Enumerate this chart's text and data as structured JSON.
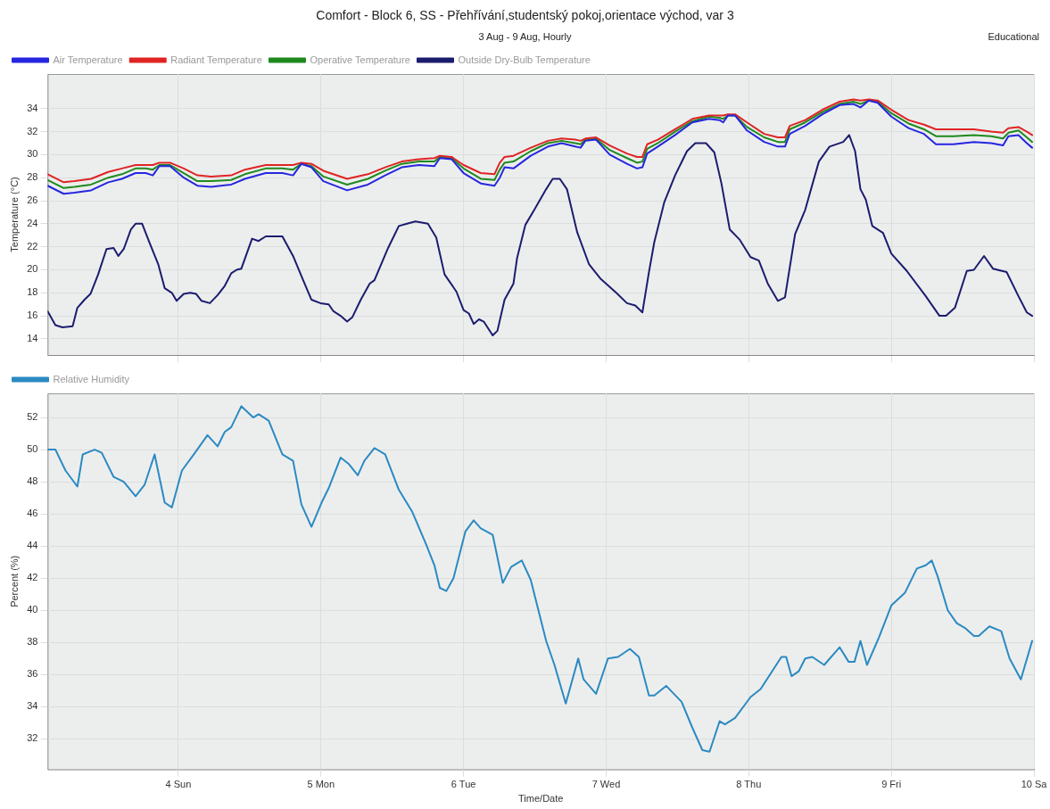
{
  "chart_data": [
    {
      "type": "line",
      "title": "Comfort - Block 6, SS - Přehřívání,studentský pokoj,orientace východ, var 3",
      "subtitle": "3 Aug - 9 Aug, Hourly",
      "annotations": [
        "Educational"
      ],
      "ylabel": "Temperature (°C)",
      "legend": "top left",
      "grid": true,
      "marker": "none",
      "line_style": "solid",
      "tick_labels": "y",
      "xlim": [
        "--08-03T02:00",
        "--08-10"
      ],
      "xticks": [
        {
          "value": "--08-04",
          "label": null
        },
        {
          "value": "--08-05",
          "label": null
        },
        {
          "value": "--08-06",
          "label": null
        },
        {
          "value": "--08-07",
          "label": null
        },
        {
          "value": "--08-08",
          "label": null
        },
        {
          "value": "--08-09",
          "label": null
        },
        {
          "value": "--08-10",
          "label": null
        }
      ],
      "ylim": [
        12.6,
        37
      ],
      "yticks": [
        14,
        16,
        18,
        20,
        22,
        24,
        26,
        28,
        30,
        32,
        34
      ],
      "x": [
        "--08-03T02:00",
        "--08-03T04:42",
        "--08-03T06:30",
        "--08-03T09:18",
        "--08-03T12:12",
        "--08-03T14:30",
        "--08-03T16:48",
        "--08-03T18:30",
        "--08-03T19:42",
        "--08-03T20:48",
        "--08-03T22:36",
        "--08-04T00:54",
        "--08-04T03:12",
        "--08-04T05:30",
        "--08-04T08:54",
        "--08-04T11:12",
        "--08-04T14:42",
        "--08-04T17:30",
        "--08-04T19:18",
        "--08-04T20:42",
        "--08-04T22:24",
        "--08-05T00:24",
        "--08-05T04:24",
        "--08-05T07:54",
        "--08-05T10:48",
        "--08-05T13:36",
        "--08-05T16:30",
        "--08-05T19:06",
        "--08-05T20:00",
        "--08-05T22:00",
        "--08-06T00:00",
        "--08-06T02:54",
        "--08-06T05:12",
        "--08-06T06:06",
        "--08-06T06:54",
        "--08-06T08:24",
        "--08-06T11:18",
        "--08-06T14:12",
        "--08-06T16:30",
        "--08-06T18:48",
        "--08-06T19:42",
        "--08-06T20:30",
        "--08-06T22:18",
        "--08-07T00:36",
        "--08-07T03:30",
        "--08-07T05:12",
        "--08-07T06:06",
        "--08-07T06:54",
        "--08-07T08:42",
        "--08-07T11:36",
        "--08-07T14:30",
        "--08-07T17:18",
        "--08-07T19:06",
        "--08-07T19:42",
        "--08-07T20:30",
        "--08-07T21:42",
        "--08-07T23:42",
        "--08-08T02:36",
        "--08-08T04:54",
        "--08-08T06:06",
        "--08-08T06:54",
        "--08-08T09:30",
        "--08-08T12:24",
        "--08-08T15:18",
        "--08-08T17:36",
        "--08-08T18:48",
        "--08-08T20:12",
        "--08-08T21:42",
        "--08-09T00:00",
        "--08-09T02:54",
        "--08-09T05:30",
        "--08-09T07:30",
        "--08-09T10:24",
        "--08-09T13:54",
        "--08-09T16:48",
        "--08-09T18:48",
        "--08-09T19:42",
        "--08-09T21:24",
        "--08-09T22:48",
        "--08-09T23:42"
      ],
      "series": [
        {
          "name": "Air Temperature",
          "color": "#2626e0",
          "values": [
            27.3,
            26.6,
            26.7,
            26.9,
            27.6,
            27.9,
            28.4,
            28.4,
            28.2,
            29.0,
            29.0,
            28.0,
            27.3,
            27.2,
            27.4,
            27.9,
            28.4,
            28.4,
            28.2,
            29.2,
            28.9,
            27.7,
            26.9,
            27.4,
            28.2,
            28.9,
            29.1,
            29.0,
            29.7,
            29.6,
            28.4,
            27.5,
            27.3,
            28.0,
            28.9,
            28.8,
            29.9,
            30.7,
            31.0,
            30.7,
            30.6,
            31.2,
            31.3,
            30.0,
            29.2,
            28.8,
            28.9,
            30.1,
            30.7,
            31.7,
            32.8,
            33.1,
            33.0,
            32.8,
            33.4,
            33.4,
            32.1,
            31.1,
            30.7,
            30.7,
            31.8,
            32.5,
            33.5,
            34.3,
            34.4,
            34.1,
            34.7,
            34.5,
            33.3,
            32.3,
            31.8,
            30.9,
            30.9,
            31.1,
            31.0,
            30.8,
            31.6,
            31.7,
            31.0,
            30.6
          ]
        },
        {
          "name": "Radiant Temperature",
          "color": "#e02424",
          "values": [
            28.3,
            27.6,
            27.7,
            27.9,
            28.5,
            28.8,
            29.1,
            29.1,
            29.1,
            29.3,
            29.3,
            28.8,
            28.2,
            28.1,
            28.2,
            28.7,
            29.1,
            29.1,
            29.1,
            29.3,
            29.2,
            28.6,
            27.9,
            28.3,
            28.9,
            29.4,
            29.6,
            29.7,
            29.9,
            29.8,
            29.1,
            28.4,
            28.3,
            29.3,
            29.8,
            29.9,
            30.6,
            31.2,
            31.4,
            31.3,
            31.2,
            31.4,
            31.5,
            30.8,
            30.1,
            29.8,
            29.8,
            30.9,
            31.3,
            32.2,
            33.1,
            33.4,
            33.4,
            33.4,
            33.5,
            33.5,
            32.8,
            31.8,
            31.5,
            31.5,
            32.5,
            33.0,
            33.9,
            34.6,
            34.8,
            34.7,
            34.8,
            34.7,
            33.9,
            33.0,
            32.6,
            32.2,
            32.2,
            32.2,
            32.0,
            31.9,
            32.3,
            32.4,
            32.0,
            31.7
          ]
        },
        {
          "name": "Operative Temperature",
          "color": "#1e8a1e",
          "values": [
            27.8,
            27.1,
            27.2,
            27.4,
            28.0,
            28.3,
            28.8,
            28.8,
            28.7,
            29.1,
            29.1,
            28.4,
            27.7,
            27.7,
            27.8,
            28.3,
            28.8,
            28.8,
            28.7,
            29.2,
            29.0,
            28.1,
            27.4,
            27.9,
            28.6,
            29.2,
            29.4,
            29.4,
            29.8,
            29.7,
            28.8,
            27.9,
            27.8,
            28.7,
            29.3,
            29.4,
            30.3,
            31.0,
            31.2,
            31.0,
            30.9,
            31.3,
            31.4,
            30.4,
            29.7,
            29.3,
            29.4,
            30.5,
            31.0,
            32.0,
            32.9,
            33.3,
            33.2,
            33.1,
            33.4,
            33.4,
            32.4,
            31.5,
            31.1,
            31.1,
            32.2,
            32.8,
            33.7,
            34.4,
            34.6,
            34.4,
            34.7,
            34.6,
            33.6,
            32.7,
            32.2,
            31.6,
            31.6,
            31.7,
            31.6,
            31.4,
            31.9,
            32.1,
            31.5,
            31.1
          ]
        },
        {
          "name": "Outside Dry-Bulb Temperature",
          "color": "#1c1c6e",
          "x": [
            "--08-03T02:00",
            "--08-03T03:18",
            "--08-03T04:30",
            "--08-03T06:12",
            "--08-03T07:00",
            "--08-03T08:12",
            "--08-03T09:12",
            "--08-03T10:30",
            "--08-03T11:54",
            "--08-03T13:06",
            "--08-03T13:54",
            "--08-03T14:48",
            "--08-03T16:00",
            "--08-03T16:48",
            "--08-03T17:54",
            "--08-03T19:06",
            "--08-03T20:36",
            "--08-03T21:42",
            "--08-03T22:54",
            "--08-03T23:42",
            "--08-04T00:54",
            "--08-04T02:00",
            "--08-04T03:00",
            "--08-04T03:54",
            "--08-04T05:18",
            "--08-04T06:36",
            "--08-04T07:48",
            "--08-04T08:54",
            "--08-04T09:48",
            "--08-04T10:36",
            "--08-04T12:24",
            "--08-04T13:30",
            "--08-04T14:42",
            "--08-04T15:48",
            "--08-04T17:30",
            "--08-04T19:18",
            "--08-04T21:00",
            "--08-04T22:24",
            "--08-04T23:54",
            "--08-05T01:18",
            "--08-05T02:06",
            "--08-05T03:18",
            "--08-05T04:24",
            "--08-05T05:18",
            "--08-05T06:42",
            "--08-05T08:12",
            "--08-05T09:00",
            "--08-05T11:18",
            "--08-05T13:06",
            "--08-05T14:30",
            "--08-05T15:54",
            "--08-05T18:00",
            "--08-05T19:24",
            "--08-05T20:48",
            "--08-05T22:48",
            "--08-06T00:00",
            "--08-06T00:54",
            "--08-06T01:42",
            "--08-06T02:36",
            "--08-06T03:24",
            "--08-06T04:54",
            "--08-06T05:42",
            "--08-06T06:54",
            "--08-06T08:24",
            "--08-06T09:00",
            "--08-06T10:24",
            "--08-06T11:54",
            "--08-06T13:54",
            "--08-06T15:00",
            "--08-06T16:12",
            "--08-06T17:24",
            "--08-06T19:06",
            "--08-06T21:06",
            "--08-06T23:06",
            "--08-07T01:42",
            "--08-07T03:30",
            "--08-07T04:54",
            "--08-07T06:06",
            "--08-07T07:12",
            "--08-07T08:06",
            "--08-07T09:48",
            "--08-07T11:36",
            "--08-07T13:36",
            "--08-07T15:00",
            "--08-07T16:48",
            "--08-07T18:12",
            "--08-07T19:24",
            "--08-07T20:48",
            "--08-07T22:30",
            "--08-08T00:18",
            "--08-08T01:42",
            "--08-08T03:12",
            "--08-08T04:54",
            "--08-08T06:06",
            "--08-08T07:48",
            "--08-08T09:30",
            "--08-08T11:48",
            "--08-08T13:36",
            "--08-08T15:54",
            "--08-08T16:54",
            "--08-08T17:54",
            "--08-08T18:48",
            "--08-08T19:42",
            "--08-08T20:48",
            "--08-08T22:36",
            "--08-09T00:00",
            "--08-09T02:36",
            "--08-09T05:48",
            "--08-09T08:06",
            "--08-09T09:12",
            "--08-09T10:42",
            "--08-09T12:42",
            "--08-09T13:54",
            "--08-09T15:36",
            "--08-09T17:06",
            "--08-09T19:24",
            "--08-09T21:24",
            "--08-09T22:48",
            "--08-09T23:42"
          ],
          "values": [
            16.4,
            15.2,
            15.0,
            15.1,
            16.7,
            17.4,
            17.9,
            19.6,
            21.8,
            21.9,
            21.2,
            21.8,
            23.5,
            24.0,
            24.0,
            22.4,
            20.5,
            18.4,
            18.0,
            17.3,
            17.9,
            18.0,
            17.9,
            17.3,
            17.1,
            17.8,
            18.6,
            19.7,
            20.0,
            20.1,
            22.7,
            22.5,
            22.9,
            22.9,
            22.9,
            21.2,
            19.1,
            17.4,
            17.1,
            17.0,
            16.4,
            16.0,
            15.5,
            15.9,
            17.4,
            18.8,
            19.1,
            21.9,
            23.8,
            24.0,
            24.2,
            24.0,
            22.8,
            19.6,
            18.1,
            16.5,
            16.2,
            15.3,
            15.7,
            15.5,
            14.3,
            14.7,
            17.4,
            18.8,
            21.0,
            23.9,
            25.2,
            27.0,
            27.9,
            27.9,
            27.0,
            23.3,
            20.5,
            19.2,
            18.0,
            17.1,
            16.9,
            16.3,
            19.8,
            22.4,
            25.9,
            28.2,
            30.3,
            31.0,
            31.0,
            30.2,
            27.5,
            23.5,
            22.6,
            21.1,
            20.8,
            18.8,
            17.3,
            17.6,
            23.1,
            25.2,
            29.4,
            30.7,
            31.1,
            31.7,
            30.3,
            27.0,
            26.1,
            23.8,
            23.2,
            21.4,
            19.9,
            17.7,
            16.0,
            16.0,
            16.7,
            19.9,
            20.0,
            21.2,
            20.1,
            19.8,
            17.7,
            16.3,
            16.0
          ]
        }
      ]
    },
    {
      "type": "line",
      "xlabel": "Time/Date",
      "ylabel": "Percent (%)",
      "legend": "top left",
      "grid": true,
      "marker": "none",
      "line_style": "solid",
      "xlim": [
        "--08-03T02:00",
        "--08-10"
      ],
      "xticks": [
        {
          "value": "--08-04",
          "label": "4 Sun"
        },
        {
          "value": "--08-05",
          "label": "5 Mon"
        },
        {
          "value": "--08-06",
          "label": "6 Tue"
        },
        {
          "value": "--08-07",
          "label": "7 Wed"
        },
        {
          "value": "--08-08",
          "label": "8 Thu"
        },
        {
          "value": "--08-09",
          "label": "9 Fri"
        },
        {
          "value": "--08-10",
          "label": "10 Sa"
        }
      ],
      "ylim": [
        30.1,
        53.5
      ],
      "yticks": [
        32,
        34,
        36,
        38,
        40,
        42,
        44,
        46,
        48,
        50,
        52
      ],
      "x": [
        "--08-03T02:00",
        "--08-03T03:18",
        "--08-03T05:00",
        "--08-03T07:00",
        "--08-03T07:54",
        "--08-03T09:54",
        "--08-03T11:06",
        "--08-03T13:06",
        "--08-03T14:48",
        "--08-03T16:48",
        "--08-03T18:18",
        "--08-03T20:00",
        "--08-03T21:42",
        "--08-03T22:54",
        "--08-04T00:36",
        "--08-04T02:36",
        "--08-04T04:54",
        "--08-04T06:36",
        "--08-04T07:48",
        "--08-04T08:54",
        "--08-04T10:36",
        "--08-04T12:36",
        "--08-04T13:30",
        "--08-04T15:12",
        "--08-04T17:30",
        "--08-04T19:18",
        "--08-04T20:42",
        "--08-04T22:24",
        "--08-05T00:06",
        "--08-05T01:18",
        "--08-05T03:18",
        "--08-05T04:42",
        "--08-05T06:12",
        "--08-05T07:18",
        "--08-05T09:00",
        "--08-05T10:48",
        "--08-05T13:06",
        "--08-05T15:24",
        "--08-05T17:42",
        "--08-05T19:06",
        "--08-05T20:00",
        "--08-05T21:06",
        "--08-05T22:18",
        "--08-06T00:18",
        "--08-06T01:42",
        "--08-06T02:54",
        "--08-06T04:54",
        "--08-06T06:36",
        "--08-06T08:00",
        "--08-06T09:48",
        "--08-06T11:18",
        "--08-06T13:54",
        "--08-06T15:18",
        "--08-06T17:12",
        "--08-06T19:18",
        "--08-06T20:12",
        "--08-06T22:18",
        "--08-07T00:18",
        "--08-07T02:00",
        "--08-07T04:00",
        "--08-07T05:30",
        "--08-07T07:12",
        "--08-07T08:06",
        "--08-07T10:06",
        "--08-07T12:42",
        "--08-07T14:30",
        "--08-07T16:12",
        "--08-07T17:24",
        "--08-07T19:06",
        "--08-07T20:00",
        "--08-07T21:42",
        "--08-08T00:18",
        "--08-08T02:00",
        "--08-08T05:30",
        "--08-08T06:18",
        "--08-08T07:12",
        "--08-08T08:24",
        "--08-08T09:30",
        "--08-08T10:42",
        "--08-08T12:42",
        "--08-08T15:18",
        "--08-08T16:48",
        "--08-08T17:48",
        "--08-08T18:48",
        "--08-08T19:54",
        "--08-08T21:54",
        "--08-09T00:00",
        "--08-09T02:18",
        "--08-09T04:18",
        "--08-09T05:48",
        "--08-09T06:48",
        "--08-09T07:48",
        "--08-09T09:30",
        "--08-09T11:00",
        "--08-09T12:24",
        "--08-09T13:54",
        "--08-09T14:42",
        "--08-09T16:30",
        "--08-09T18:30",
        "--08-09T19:54",
        "--08-09T21:48",
        "--08-09T23:42"
      ],
      "series": [
        {
          "name": "Relative Humidity",
          "color": "#2b8ac2",
          "values": [
            50.0,
            50.0,
            48.7,
            47.7,
            49.7,
            50.0,
            49.8,
            48.3,
            48.0,
            47.1,
            47.8,
            49.7,
            46.7,
            46.4,
            48.7,
            49.7,
            50.9,
            50.2,
            51.1,
            51.4,
            52.7,
            52.0,
            52.2,
            51.8,
            49.7,
            49.3,
            46.6,
            45.2,
            46.7,
            47.6,
            49.5,
            49.1,
            48.4,
            49.3,
            50.1,
            49.7,
            47.5,
            46.1,
            44.1,
            42.8,
            41.4,
            41.2,
            42.0,
            44.9,
            45.6,
            45.1,
            44.7,
            41.7,
            42.7,
            43.1,
            41.9,
            38.1,
            36.6,
            34.2,
            37.0,
            35.7,
            34.8,
            37.0,
            37.1,
            37.6,
            37.1,
            34.7,
            34.7,
            35.3,
            34.3,
            32.7,
            31.3,
            31.2,
            33.1,
            32.9,
            33.3,
            34.6,
            35.1,
            37.1,
            37.1,
            35.9,
            36.2,
            37.0,
            37.1,
            36.6,
            37.7,
            36.8,
            36.8,
            38.1,
            36.6,
            38.3,
            40.3,
            41.1,
            42.6,
            42.8,
            43.1,
            42.1,
            40.0,
            39.2,
            38.9,
            38.4,
            38.4,
            39.0,
            38.7,
            37.0,
            35.7,
            38.1
          ]
        }
      ]
    }
  ]
}
